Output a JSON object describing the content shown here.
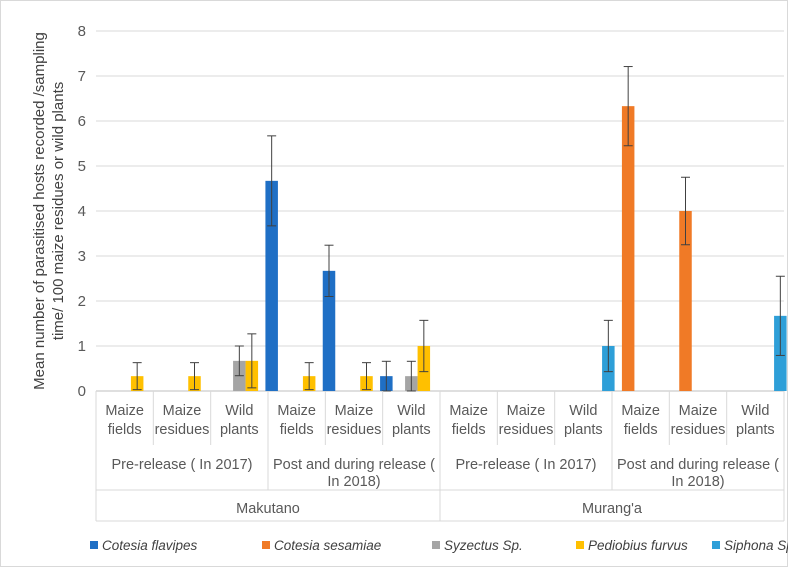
{
  "chart_data": {
    "type": "bar",
    "ylabel_lines": [
      "Mean number of parasitised hosts recorded /sampling",
      "time/ 100 maize residues or wild plants"
    ],
    "ylim": [
      0,
      8
    ],
    "yticks": [
      0,
      1,
      2,
      3,
      4,
      5,
      6,
      7,
      8
    ],
    "grid": true,
    "legend_position": "bottom",
    "locations": [
      "Makutano",
      "Murang'a"
    ],
    "periods": [
      {
        "lines": [
          "Pre-release ( In 2017)"
        ]
      },
      {
        "lines": [
          "Post and during release (",
          "In 2018)"
        ]
      },
      {
        "lines": [
          "Pre-release ( In 2017)"
        ]
      },
      {
        "lines": [
          "Post and during release (",
          "In 2018)"
        ]
      }
    ],
    "categories": [
      [
        "Maize",
        "fields"
      ],
      [
        "Maize",
        "residues"
      ],
      [
        "Wild",
        "plants"
      ],
      [
        "Maize",
        "fields"
      ],
      [
        "Maize",
        "residues"
      ],
      [
        "Wild",
        "plants"
      ],
      [
        "Maize",
        "fields"
      ],
      [
        "Maize",
        "residues"
      ],
      [
        "Wild",
        "plants"
      ],
      [
        "Maize",
        "fields"
      ],
      [
        "Maize",
        "residues"
      ],
      [
        "Wild",
        "plants"
      ]
    ],
    "series": [
      {
        "name": "Cotesia flavipes",
        "color": "#1f6fc5",
        "values": [
          0,
          0,
          0,
          4.67,
          2.67,
          0.33,
          0,
          0,
          0,
          0,
          0,
          0
        ],
        "errors": [
          0,
          0,
          0,
          1.0,
          0.57,
          0.33,
          0,
          0,
          0,
          0,
          0,
          0
        ]
      },
      {
        "name": "Cotesia sesamiae",
        "color": "#f07a26",
        "values": [
          0,
          0,
          0,
          0,
          0,
          0,
          0,
          0,
          0,
          6.33,
          4.0,
          0
        ],
        "errors": [
          0,
          0,
          0,
          0,
          0,
          0,
          0,
          0,
          0,
          0.88,
          0.75,
          0
        ]
      },
      {
        "name": "Syzectus Sp.",
        "color": "#a5a5a5",
        "values": [
          0,
          0,
          0.67,
          0,
          0,
          0.33,
          0,
          0,
          0,
          0,
          0,
          0
        ],
        "errors": [
          0,
          0,
          0.33,
          0,
          0,
          0.33,
          0,
          0,
          0,
          0,
          0,
          0
        ]
      },
      {
        "name": "Pediobius furvus",
        "color": "#ffc000",
        "values": [
          0.33,
          0.33,
          0.67,
          0.33,
          0.33,
          1.0,
          0,
          0,
          0,
          0,
          0,
          0
        ],
        "errors": [
          0.3,
          0.3,
          0.6,
          0.3,
          0.3,
          0.57,
          0,
          0,
          0,
          0,
          0,
          0
        ]
      },
      {
        "name": "Siphona Sp.",
        "color": "#2e9fd8",
        "values": [
          0,
          0,
          0,
          0,
          0,
          0,
          0,
          0,
          1.0,
          0,
          0,
          1.67
        ],
        "errors": [
          0,
          0,
          0,
          0,
          0,
          0,
          0,
          0,
          0.57,
          0,
          0,
          0.88
        ]
      }
    ]
  }
}
